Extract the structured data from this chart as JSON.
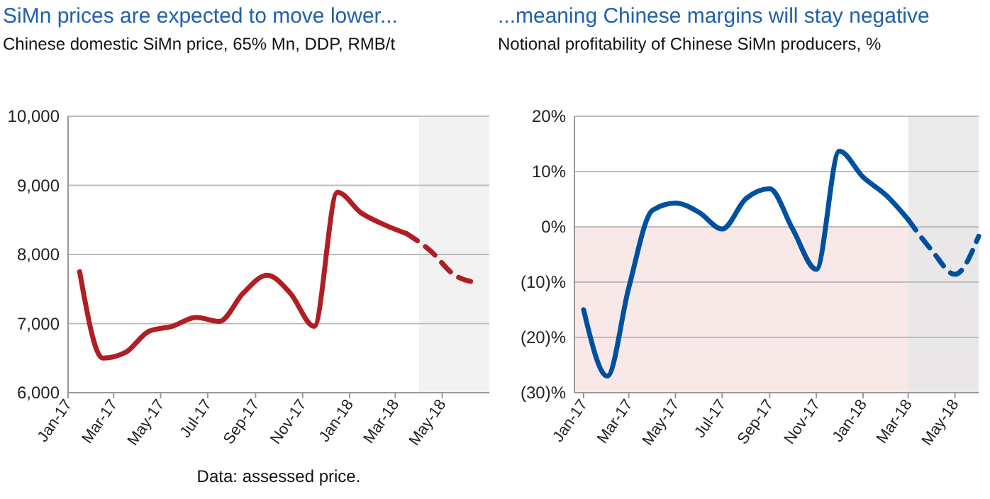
{
  "chart_data": [
    {
      "type": "line",
      "title": "SiMn prices are expected to move lower...",
      "subtitle": "Chinese domestic SiMn price, 65% Mn, DDP, RMB/t",
      "annotations": [
        "Data: assessed price."
      ],
      "x": [
        "2017-01-16",
        "2017-02-15",
        "2017-03-16",
        "2017-04-16",
        "2017-05-16",
        "2017-06-16",
        "2017-07-16",
        "2017-08-16",
        "2017-09-16",
        "2017-10-16",
        "2017-11-16",
        "2017-12-16",
        "2018-01-16",
        "2018-02-15",
        "2018-03-16",
        "2018-04-16",
        "2018-05-16",
        "2018-06-16"
      ],
      "series": [
        {
          "color": "#b01e23",
          "line_style": "solid",
          "values": [
            7750,
            6500,
            6580,
            6890,
            6960,
            7090,
            7030,
            7440,
            7700,
            7440,
            6960,
            8900,
            8600,
            8430,
            8300,
            null,
            null,
            null
          ]
        },
        {
          "color": "#b01e23",
          "line_style": "dashed",
          "values": [
            null,
            null,
            null,
            null,
            null,
            null,
            null,
            null,
            null,
            null,
            null,
            null,
            null,
            null,
            8300,
            8050,
            7710,
            7590
          ]
        }
      ],
      "xlim": [
        "2017-01",
        "2018-07"
      ],
      "xticks": [
        {
          "value": "2017-01",
          "label": "Jan-17"
        },
        {
          "value": "2017-03",
          "label": "Mar-17"
        },
        {
          "value": "2017-05",
          "label": "May-17"
        },
        {
          "value": "2017-07",
          "label": "Jul-17"
        },
        {
          "value": "2017-09",
          "label": "Sep-17"
        },
        {
          "value": "2017-11",
          "label": "Nov-17"
        },
        {
          "value": "2018-01",
          "label": "Jan-18"
        },
        {
          "value": "2018-03",
          "label": "Mar-18"
        },
        {
          "value": "2018-05",
          "label": "May-18"
        }
      ],
      "ylim": [
        6000,
        10000
      ],
      "yticks": [
        {
          "value": 6000,
          "label": "6,000"
        },
        {
          "value": 7000,
          "label": "7,000"
        },
        {
          "value": 8000,
          "label": "8,000"
        },
        {
          "value": 9000,
          "label": "9,000"
        },
        {
          "value": 10000,
          "label": "10,000"
        }
      ],
      "bands": [
        {
          "axis": "x",
          "from": "2018-04",
          "to": "2018-07",
          "color": "#f0f0f0"
        }
      ],
      "grid": "y"
    },
    {
      "type": "line",
      "title": "...meaning Chinese margins will stay negative",
      "subtitle": "Notional profitability of Chinese SiMn producers, %",
      "x": [
        "2017-01",
        "2017-02",
        "2017-03",
        "2017-04",
        "2017-05",
        "2017-06",
        "2017-07",
        "2017-08",
        "2017-09",
        "2017-10",
        "2017-11",
        "2017-12",
        "2018-01",
        "2018-02",
        "2018-03",
        "2018-04",
        "2018-05",
        "2018-06"
      ],
      "series": [
        {
          "color": "#0050a0",
          "line_style": "solid",
          "values": [
            -15,
            -27,
            -11,
            3,
            4.3,
            2.6,
            -0.4,
            5.1,
            6.9,
            -0.4,
            -7.7,
            13.7,
            9,
            5.6,
            1.3,
            null,
            null,
            null
          ]
        },
        {
          "color": "#0050a0",
          "line_style": "dashed",
          "values": [
            null,
            null,
            null,
            null,
            null,
            null,
            null,
            null,
            null,
            null,
            null,
            null,
            null,
            null,
            1.3,
            -4.3,
            -8.6,
            -1.7
          ]
        }
      ],
      "xlim": [
        "2016-12-20",
        "2018-06"
      ],
      "xticks": [
        {
          "value": "2017-01",
          "label": "Jan-17"
        },
        {
          "value": "2017-03",
          "label": "Mar-17"
        },
        {
          "value": "2017-05",
          "label": "May-17"
        },
        {
          "value": "2017-07",
          "label": "Jul-17"
        },
        {
          "value": "2017-09",
          "label": "Sep-17"
        },
        {
          "value": "2017-11",
          "label": "Nov-17"
        },
        {
          "value": "2018-01",
          "label": "Jan-18"
        },
        {
          "value": "2018-03",
          "label": "Mar-18"
        },
        {
          "value": "2018-05",
          "label": "May-18"
        }
      ],
      "ylim": [
        -30,
        20
      ],
      "yticks": [
        {
          "value": -30,
          "label": "(30)%"
        },
        {
          "value": -20,
          "label": "(20)%"
        },
        {
          "value": -10,
          "label": "(10)%"
        },
        {
          "value": 0,
          "label": "0%"
        },
        {
          "value": 10,
          "label": "10%"
        },
        {
          "value": 20,
          "label": "20%"
        }
      ],
      "bands": [
        {
          "axis": "y",
          "from": 0,
          "to": -30,
          "color": "#f7e0e0"
        },
        {
          "axis": "x",
          "from": "2018-03",
          "to": "2018-06",
          "color": "#e6e6e6"
        }
      ],
      "grid": "y"
    }
  ]
}
